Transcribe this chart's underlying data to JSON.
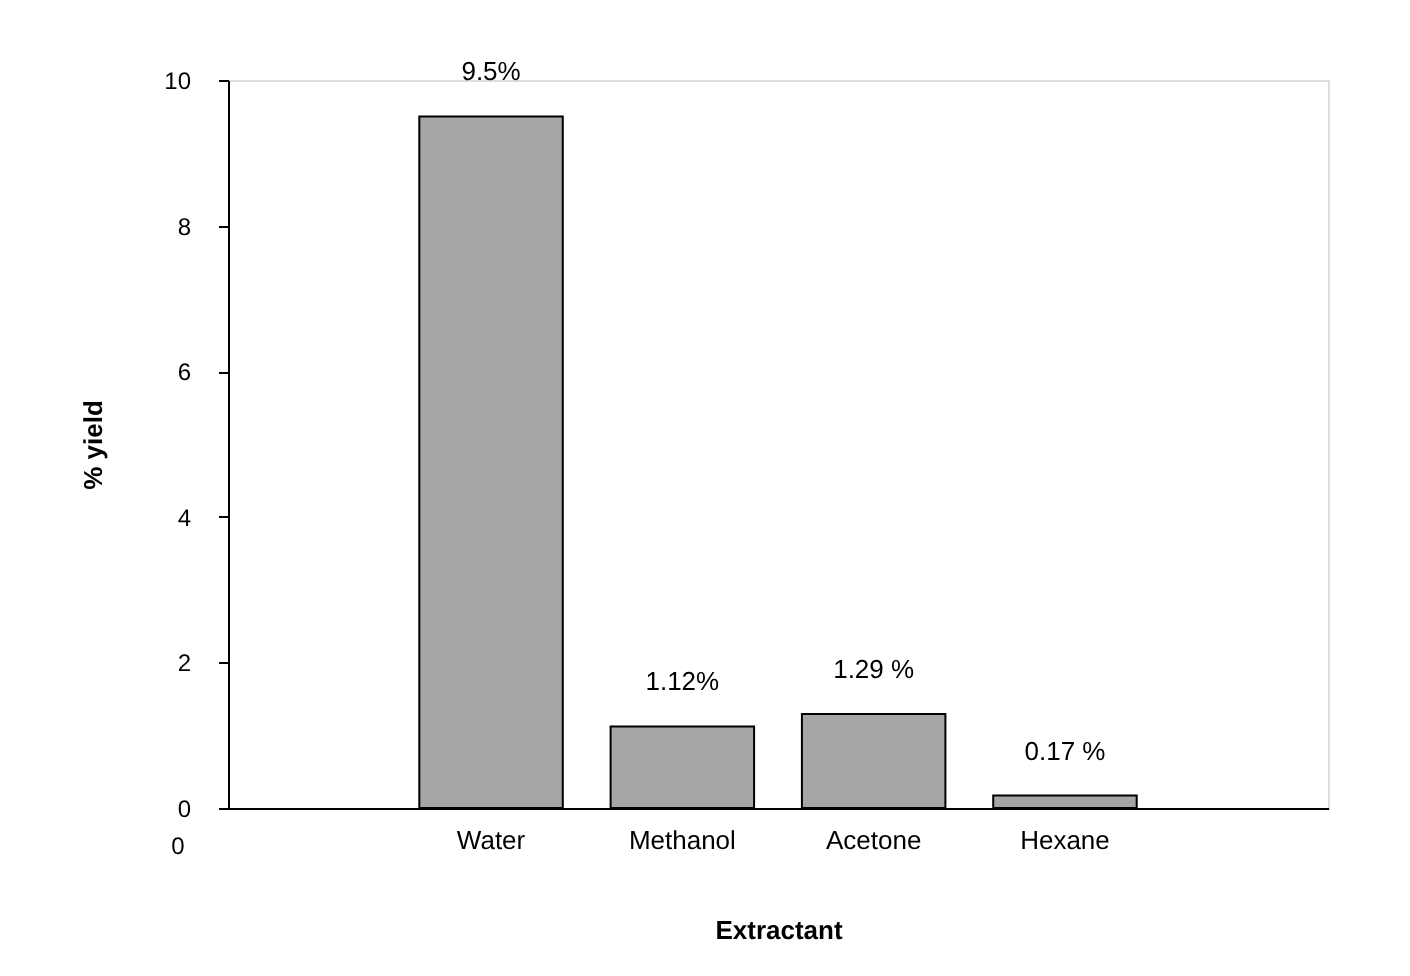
{
  "chart_data": {
    "type": "bar",
    "xlabel": "Extractant",
    "ylabel": "% yield",
    "categories": [
      "Water",
      "Methanol",
      "Acetone",
      "Hexane"
    ],
    "values": [
      9.5,
      1.12,
      1.29,
      0.17
    ],
    "value_labels": [
      "9.5%",
      "1.12%",
      "1.29 %",
      "0.17 %"
    ],
    "color": "#a6a6a6",
    "ylim": [
      0,
      10
    ],
    "yticks": [
      0,
      2,
      4,
      6,
      8,
      10
    ],
    "grid": false,
    "annotations": [
      "0"
    ]
  }
}
